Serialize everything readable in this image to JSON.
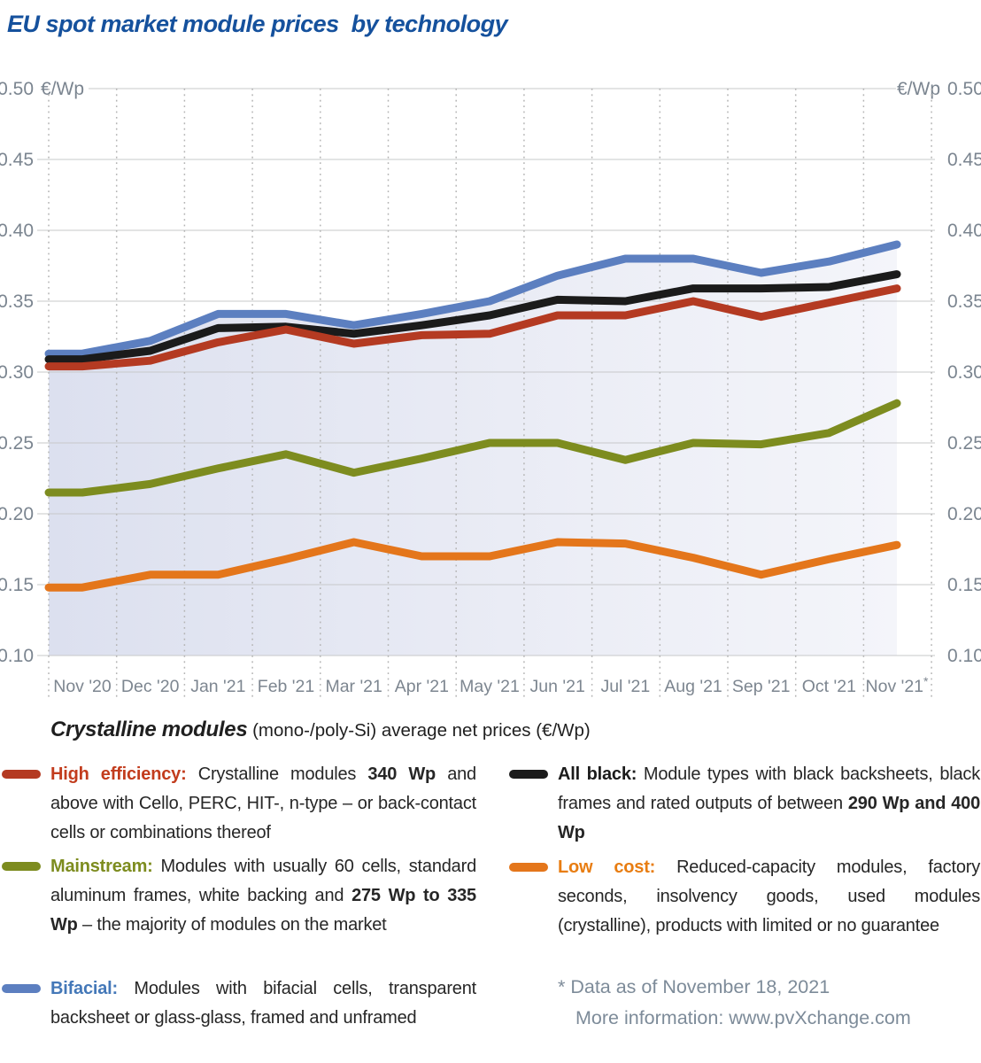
{
  "title": "EU spot market module prices  by technology",
  "y_axis": {
    "unit": "€/Wp",
    "ticks": [
      "0.50",
      "0.45",
      "0.40",
      "0.35",
      "0.30",
      "0.25",
      "0.20",
      "0.15",
      "0.10"
    ]
  },
  "chart_data": {
    "type": "line",
    "title": "EU spot market module prices by technology",
    "ylabel": "€/Wp",
    "ylim": [
      0.1,
      0.5
    ],
    "grid": "horizontal solid lines every 0.05, vertical dotted month separators",
    "legend_position": "below chart as descriptive paragraphs",
    "categories": [
      "Nov '20",
      "Dec '20",
      "Jan '21",
      "Feb '21",
      "Mar '21",
      "Apr '21",
      "May '21",
      "Jun '21",
      "Jul '21",
      "Aug '21",
      "Sep '21",
      "Oct '21",
      "Nov '21*"
    ],
    "series": [
      {
        "id": "bifacial",
        "name": "Bifacial",
        "color": "#5c7fc0",
        "values": [
          0.313,
          0.322,
          0.341,
          0.341,
          0.333,
          0.341,
          0.35,
          0.368,
          0.38,
          0.38,
          0.37,
          0.378,
          0.39
        ]
      },
      {
        "id": "all_black",
        "name": "All black",
        "color": "#1b1b1b",
        "values": [
          0.309,
          0.315,
          0.331,
          0.332,
          0.327,
          0.333,
          0.34,
          0.351,
          0.35,
          0.359,
          0.359,
          0.36,
          0.369
        ]
      },
      {
        "id": "high_efficiency",
        "name": "High efficiency",
        "color": "#b43a22",
        "values": [
          0.304,
          0.308,
          0.321,
          0.33,
          0.32,
          0.326,
          0.327,
          0.34,
          0.34,
          0.35,
          0.339,
          0.349,
          0.359
        ]
      },
      {
        "id": "mainstream",
        "name": "Mainstream",
        "color": "#7d8c1f",
        "values": [
          0.215,
          0.221,
          0.232,
          0.242,
          0.229,
          0.239,
          0.25,
          0.25,
          0.238,
          0.25,
          0.249,
          0.257,
          0.278
        ]
      },
      {
        "id": "low_cost",
        "name": "Low cost",
        "color": "#e4761b",
        "values": [
          0.148,
          0.157,
          0.157,
          0.168,
          0.18,
          0.17,
          0.17,
          0.18,
          0.179,
          0.169,
          0.157,
          0.168,
          0.178
        ]
      }
    ]
  },
  "legend": {
    "heading_bold": "Crystalline modules",
    "heading_rest": " (mono-/poly-Si) average net prices (€/Wp)",
    "items": [
      {
        "id": "high_efficiency",
        "label": "High efficiency:",
        "label_color": "#c23c1d",
        "segments": [
          {
            "t": "Crystalline modules ",
            "b": false
          },
          {
            "t": "340 Wp",
            "b": true
          },
          {
            "t": " and above with Cello, PERC, HIT-, n-type – or back-contact cells or combinations thereof",
            "b": false
          }
        ]
      },
      {
        "id": "mainstream",
        "label": "Mainstream:",
        "label_color": "#7d8c1f",
        "segments": [
          {
            "t": "Modules with usually 60 cells, standard aluminum frames, white backing and ",
            "b": false
          },
          {
            "t": "275 Wp to 335 Wp",
            "b": true
          },
          {
            "t": " – the majority of modules on the market",
            "b": false
          }
        ]
      },
      {
        "id": "bifacial",
        "label": "Bifacial:",
        "label_color": "#4478b8",
        "segments": [
          {
            "t": "Modules with bifacial cells, transparent backsheet or glass-glass, framed and unframed",
            "b": false
          }
        ]
      },
      {
        "id": "all_black",
        "label": "All black:",
        "label_color": "#1b1b1b",
        "segments": [
          {
            "t": "Module types with black backsheets, black frames and rated outputs of between ",
            "b": false
          },
          {
            "t": "290 Wp and 400 Wp",
            "b": true
          }
        ]
      },
      {
        "id": "low_cost",
        "label": "Low cost:",
        "label_color": "#e87d12",
        "segments": [
          {
            "t": "Reduced-capacity modules, factory seconds, insolvency goods, used modules (crystalline), products with limited or no guarantee",
            "b": false
          }
        ]
      }
    ],
    "footnote_line1": "* Data as of November 18, 2021",
    "footnote_line2": "More information: www.pvXchange.com"
  },
  "colors": {
    "title": "#15519d",
    "axis_labels": "#7b8590",
    "gridline": "#c7c8ca",
    "month_separator": "#b4b4b4",
    "plot_wash_left": "#dce0ef",
    "plot_wash_right": "#f4f5fa",
    "footnote": "#7d8b99"
  }
}
